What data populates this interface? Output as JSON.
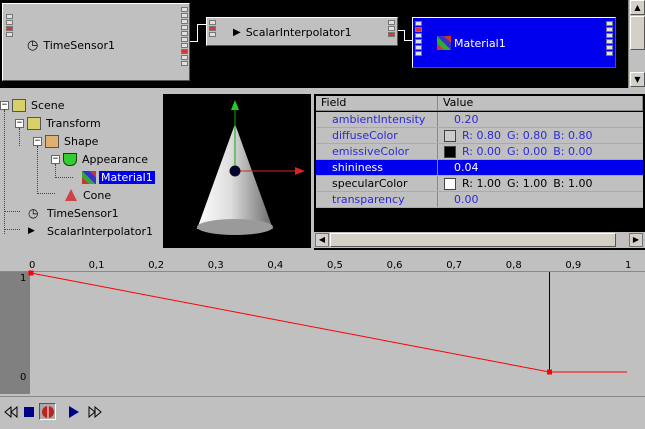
{
  "route_editor": {
    "nodes": [
      {
        "label": "TimeSensor1",
        "icon": "clock-icon"
      },
      {
        "label": "ScalarInterpolator1",
        "icon": "interpolator-icon"
      },
      {
        "label": "Material1",
        "icon": "material-icon"
      }
    ]
  },
  "scene_tree": {
    "items": [
      {
        "label": "Scene",
        "icon": "scene-icon"
      },
      {
        "label": "Transform",
        "icon": "transform-icon"
      },
      {
        "label": "Shape",
        "icon": "shape-icon"
      },
      {
        "label": "Appearance",
        "icon": "appearance-icon"
      },
      {
        "label": "Material1",
        "icon": "material-icon"
      },
      {
        "label": "Cone",
        "icon": "cone-icon"
      },
      {
        "label": "TimeSensor1",
        "icon": "clock-icon"
      },
      {
        "label": "ScalarInterpolator1",
        "icon": "interpolator-icon"
      }
    ],
    "expander_symbol": "−"
  },
  "field_table": {
    "headers": {
      "field": "Field",
      "value": "Value"
    },
    "rows": [
      {
        "field": "ambientIntensity",
        "value": "0.20"
      },
      {
        "field": "diffuseColor",
        "r": "R:  0.80",
        "g": "G:  0.80",
        "b": "B:  0.80",
        "swatch": "#cccccc"
      },
      {
        "field": "emissiveColor",
        "r": "R:  0.00",
        "g": "G:  0.00",
        "b": "B:  0.00",
        "swatch": "#000000"
      },
      {
        "field": "shininess",
        "value": "0.04"
      },
      {
        "field": "specularColor",
        "r": "R:  1.00",
        "g": "G:  1.00",
        "b": "B:  1.00",
        "swatch": "#ffffff"
      },
      {
        "field": "transparency",
        "value": "0.00"
      }
    ]
  },
  "timeline": {
    "ticks": [
      "0",
      "0,1",
      "0,2",
      "0,3",
      "0,4",
      "0,5",
      "0,6",
      "0,7",
      "0,8",
      "0,9",
      "1"
    ],
    "y_labels": [
      "1",
      "0"
    ],
    "keyframes": [
      {
        "t": 0.0,
        "v": 1.0
      },
      {
        "t": 0.87,
        "v": 0.0
      }
    ],
    "cursor_t": 0.87,
    "line_color": "#ff0000"
  },
  "colors": {
    "selection": "#0000ee",
    "field_text": "#2a2ad8",
    "panel": "#c0c0c0"
  }
}
